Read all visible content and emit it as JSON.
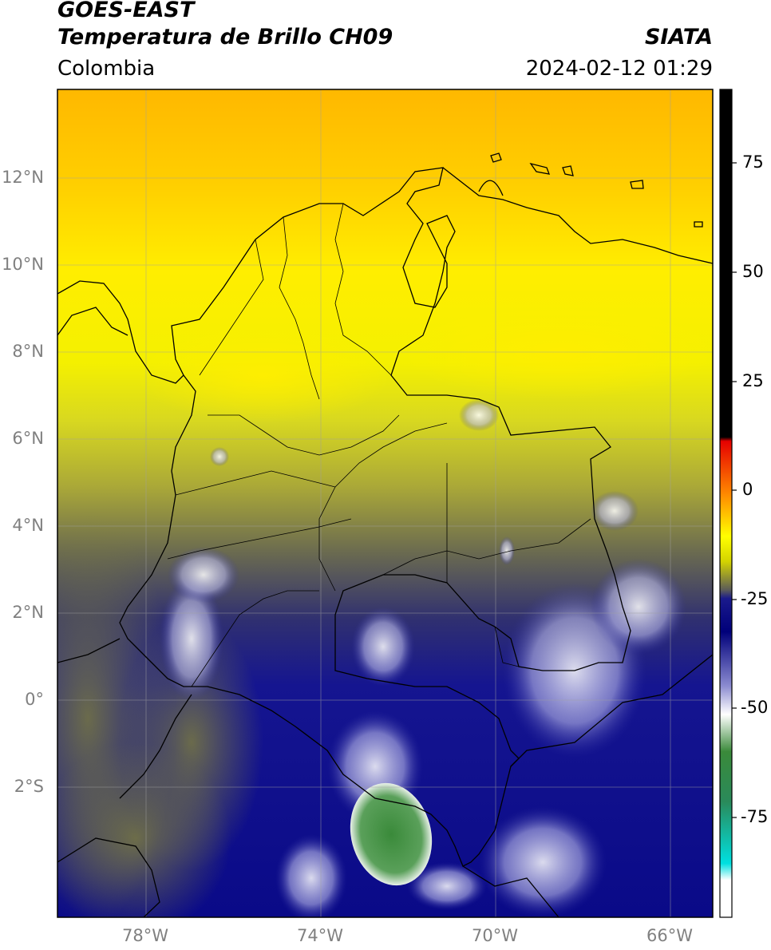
{
  "header": {
    "satellite": "GOES-EAST",
    "product": "Temperatura de Brillo CH09",
    "region": "Colombia",
    "agency": "SIATA",
    "datetime": "2024-02-12 01:29"
  },
  "map": {
    "lat_labels": [
      "12°N",
      "10°N",
      "8°N",
      "6°N",
      "4°N",
      "2°N",
      "0°",
      "2°S"
    ],
    "lon_labels": [
      "78°W",
      "74°W",
      "70°W",
      "66°W"
    ]
  },
  "colorbar": {
    "ticks": [
      "75",
      "50",
      "25",
      "0",
      "-25",
      "-50",
      "-75"
    ],
    "stops": [
      {
        "value": 89,
        "color": "#000000"
      },
      {
        "value": 9,
        "color": "#000000"
      },
      {
        "value": 8,
        "color": "#e60000"
      },
      {
        "value": -5,
        "color": "#ff8c00"
      },
      {
        "value": -15,
        "color": "#ffff00"
      },
      {
        "value": -20,
        "color": "#d4d400"
      },
      {
        "value": -24,
        "color": "#5a5a5a"
      },
      {
        "value": -26,
        "color": "#1a1a8c"
      },
      {
        "value": -32,
        "color": "#00007a"
      },
      {
        "value": -42,
        "color": "#8a8ad0"
      },
      {
        "value": -50,
        "color": "#ffffff"
      },
      {
        "value": -60,
        "color": "#3a8a3a"
      },
      {
        "value": -70,
        "color": "#2a8a5a"
      },
      {
        "value": -85,
        "color": "#00e0e0"
      },
      {
        "value": -88,
        "color": "#ffffff"
      },
      {
        "value": -100,
        "color": "#ffffff"
      }
    ]
  }
}
